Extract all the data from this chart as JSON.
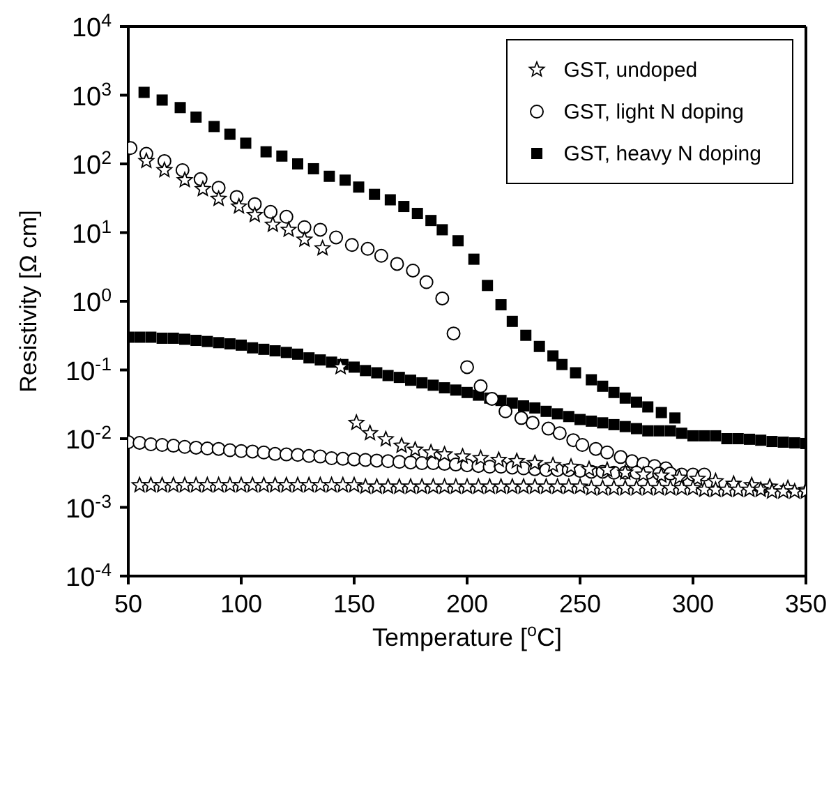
{
  "chart_data": {
    "type": "scatter",
    "xlabel": "Temperature [$^{o}$C]",
    "ylabel": "Resistivity [Ω cm]",
    "log": "y",
    "xlim": [
      50,
      350
    ],
    "xticks": [
      50,
      100,
      150,
      200,
      250,
      300,
      350
    ],
    "ylim": [
      0.0001,
      10000
    ],
    "yticks": [
      {
        "value": 0.0001,
        "label": "10$^{-4}$"
      },
      {
        "value": 0.001,
        "label": "10$^{-3}$"
      },
      {
        "value": 0.01,
        "label": "10$^{-2}$"
      },
      {
        "value": 0.1,
        "label": "10$^{-1}$"
      },
      {
        "value": 1,
        "label": "10$^{0}$"
      },
      {
        "value": 10,
        "label": "10$^{1}$"
      },
      {
        "value": 100,
        "label": "10$^{2}$"
      },
      {
        "value": 1000,
        "label": "10$^{3}$"
      },
      {
        "value": 10000,
        "label": "10$^{4}$"
      }
    ],
    "legend": "top right",
    "series": [
      {
        "name": "GST, undoped",
        "color": "#000000",
        "marker": "star",
        "x": [
          58,
          66,
          75,
          83,
          90,
          99,
          106,
          114,
          121,
          128,
          136,
          144,
          151,
          157,
          164,
          171,
          177,
          184,
          190,
          198,
          206,
          214,
          222,
          230,
          238,
          246,
          254,
          262,
          270,
          278,
          286,
          294,
          302,
          310,
          318,
          326,
          334,
          342,
          350,
          55,
          60,
          65,
          70,
          75,
          80,
          85,
          90,
          95,
          100,
          105,
          110,
          115,
          120,
          125,
          130,
          135,
          140,
          145,
          150,
          155,
          160,
          165,
          170,
          175,
          180,
          185,
          190,
          195,
          200,
          205,
          210,
          215,
          220,
          225,
          230,
          235,
          240,
          245,
          250,
          255,
          260,
          265,
          270,
          275,
          280,
          285,
          290,
          295,
          300,
          305,
          310,
          315,
          320,
          325,
          330,
          335,
          340,
          345,
          350
        ],
        "values": [
          110,
          81,
          58,
          43,
          31,
          24,
          18,
          13,
          11,
          7.9,
          5.9,
          0.11,
          0.017,
          0.012,
          0.0098,
          0.0079,
          0.0069,
          0.0063,
          0.0059,
          0.0055,
          0.0052,
          0.0049,
          0.0047,
          0.0044,
          0.0041,
          0.0039,
          0.0036,
          0.0035,
          0.0032,
          0.003,
          0.0029,
          0.0027,
          0.0026,
          0.0024,
          0.0022,
          0.0021,
          0.002,
          0.0019,
          0.0018,
          0.0021,
          0.0021,
          0.0021,
          0.0021,
          0.0021,
          0.0021,
          0.0021,
          0.0021,
          0.0021,
          0.0021,
          0.0021,
          0.0021,
          0.0021,
          0.0021,
          0.0021,
          0.0021,
          0.0021,
          0.0021,
          0.0021,
          0.0021,
          0.002,
          0.002,
          0.002,
          0.002,
          0.002,
          0.002,
          0.002,
          0.002,
          0.002,
          0.002,
          0.002,
          0.002,
          0.002,
          0.002,
          0.002,
          0.002,
          0.002,
          0.002,
          0.002,
          0.002,
          0.0019,
          0.0019,
          0.0019,
          0.0019,
          0.0019,
          0.0019,
          0.0019,
          0.0019,
          0.0019,
          0.0019,
          0.0018,
          0.0018,
          0.0018,
          0.0018,
          0.0018,
          0.0018,
          0.0017,
          0.0017,
          0.0017,
          0.0017
        ]
      },
      {
        "name": "GST, light N doping",
        "color": "#000000",
        "marker": "circle",
        "x": [
          51,
          58,
          66,
          74,
          82,
          90,
          98,
          106,
          113,
          120,
          128,
          135,
          142,
          149,
          156,
          162,
          169,
          176,
          182,
          189,
          194,
          200,
          206,
          211,
          217,
          224,
          229,
          236,
          241,
          247,
          251,
          257,
          262,
          268,
          273,
          278,
          283,
          288,
          50,
          55,
          60,
          65,
          70,
          75,
          80,
          85,
          90,
          95,
          100,
          105,
          110,
          115,
          120,
          125,
          130,
          135,
          140,
          145,
          150,
          155,
          160,
          165,
          170,
          175,
          180,
          185,
          190,
          195,
          200,
          205,
          210,
          215,
          220,
          225,
          230,
          235,
          240,
          245,
          250,
          255,
          260,
          265,
          270,
          275,
          280,
          285,
          290,
          295,
          300,
          305
        ],
        "values": [
          170,
          140,
          110,
          81,
          60,
          45,
          33,
          26,
          20,
          17,
          12,
          11,
          8.5,
          6.6,
          5.8,
          4.6,
          3.5,
          2.8,
          1.9,
          1.1,
          0.34,
          0.11,
          0.058,
          0.038,
          0.025,
          0.02,
          0.017,
          0.014,
          0.012,
          0.0095,
          0.0081,
          0.0071,
          0.0063,
          0.0054,
          0.0047,
          0.0043,
          0.004,
          0.0037,
          0.0089,
          0.0087,
          0.0083,
          0.0081,
          0.0079,
          0.0076,
          0.0074,
          0.0072,
          0.0071,
          0.0068,
          0.0066,
          0.0065,
          0.0063,
          0.006,
          0.0059,
          0.0058,
          0.0056,
          0.0055,
          0.0052,
          0.0051,
          0.005,
          0.0049,
          0.0048,
          0.0047,
          0.0046,
          0.0045,
          0.0044,
          0.0044,
          0.0043,
          0.0042,
          0.0041,
          0.004,
          0.0039,
          0.0039,
          0.0038,
          0.0037,
          0.0036,
          0.0035,
          0.0035,
          0.0035,
          0.0034,
          0.0033,
          0.0033,
          0.0032,
          0.0032,
          0.0032,
          0.0032,
          0.0031,
          0.0031,
          0.003,
          0.003,
          0.003
        ]
      },
      {
        "name": "GST, heavy N doping",
        "color": "#000000",
        "marker": "square",
        "x": [
          57,
          65,
          73,
          80,
          88,
          95,
          102,
          111,
          118,
          125,
          132,
          139,
          146,
          152,
          159,
          166,
          172,
          178,
          184,
          189,
          196,
          203,
          209,
          215,
          220,
          226,
          232,
          238,
          242,
          248,
          255,
          260,
          265,
          270,
          275,
          280,
          286,
          292,
          50,
          55,
          60,
          65,
          70,
          75,
          80,
          85,
          90,
          95,
          100,
          105,
          110,
          115,
          120,
          125,
          130,
          135,
          140,
          145,
          150,
          155,
          160,
          165,
          170,
          175,
          180,
          185,
          190,
          195,
          200,
          205,
          210,
          215,
          220,
          225,
          230,
          235,
          240,
          245,
          250,
          255,
          260,
          265,
          270,
          275,
          280,
          285,
          290,
          295,
          300,
          305,
          310,
          315,
          320,
          325,
          330,
          335,
          340,
          345,
          350
        ],
        "values": [
          1100,
          850,
          660,
          480,
          350,
          270,
          200,
          150,
          130,
          100,
          85,
          66,
          58,
          46,
          36,
          30,
          24,
          19,
          15,
          11,
          7.6,
          4.1,
          1.7,
          0.89,
          0.51,
          0.32,
          0.22,
          0.16,
          0.12,
          0.091,
          0.072,
          0.058,
          0.047,
          0.039,
          0.034,
          0.029,
          0.024,
          0.02,
          0.3,
          0.3,
          0.3,
          0.29,
          0.29,
          0.28,
          0.27,
          0.26,
          0.25,
          0.24,
          0.23,
          0.21,
          0.2,
          0.19,
          0.18,
          0.17,
          0.15,
          0.14,
          0.13,
          0.12,
          0.11,
          0.098,
          0.091,
          0.083,
          0.078,
          0.071,
          0.065,
          0.06,
          0.055,
          0.051,
          0.047,
          0.043,
          0.039,
          0.036,
          0.033,
          0.03,
          0.028,
          0.025,
          0.023,
          0.021,
          0.019,
          0.018,
          0.017,
          0.016,
          0.015,
          0.014,
          0.013,
          0.013,
          0.013,
          0.012,
          0.011,
          0.011,
          0.011,
          0.01,
          0.01,
          0.0098,
          0.0095,
          0.0091,
          0.0089,
          0.0087,
          0.0085
        ]
      }
    ]
  }
}
